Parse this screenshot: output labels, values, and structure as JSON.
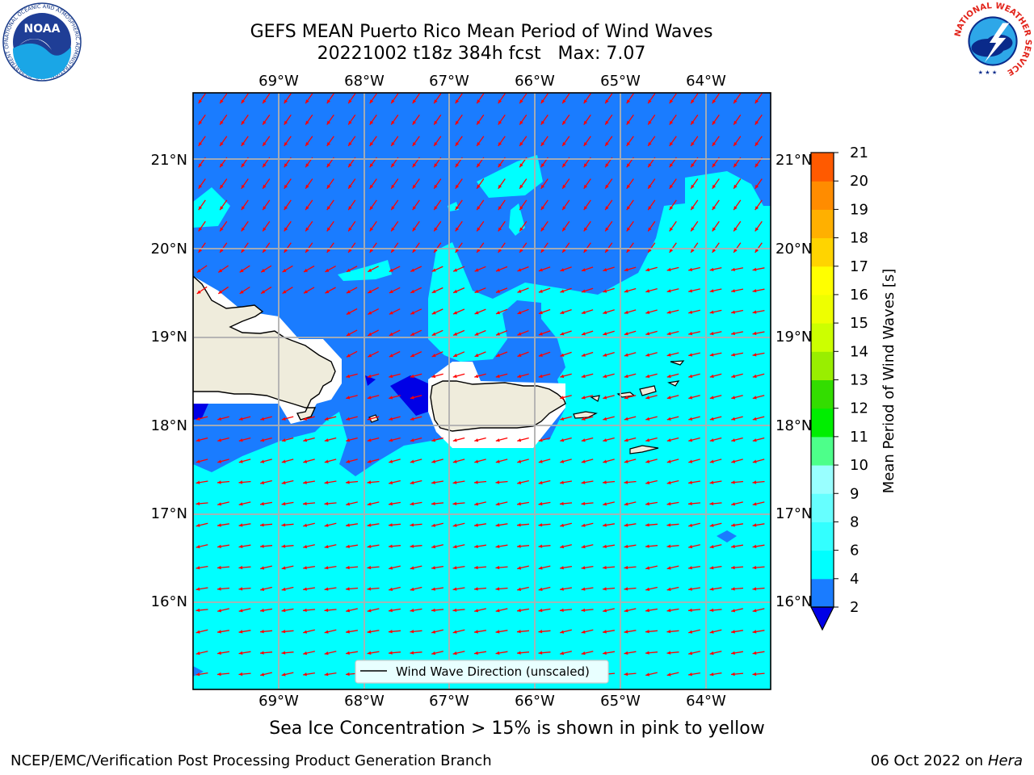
{
  "title": {
    "line1": "GEFS MEAN Puerto Rico Mean Period of Wind Waves",
    "line2": "20221002 t18z 384h fcst   Max: 7.07"
  },
  "map": {
    "lon_labels": [
      "69°W",
      "68°W",
      "67°W",
      "66°W",
      "65°W",
      "64°W"
    ],
    "lat_labels": [
      "21°N",
      "20°N",
      "19°N",
      "18°N",
      "17°N",
      "16°N"
    ],
    "legend_label": "Wind Wave Direction (unscaled)",
    "colors": {
      "ocean_dark": "#1a7cff",
      "ocean_light": "#00ffff",
      "deep": "#0000e6",
      "land": "#efecdc",
      "arrow": "#ff0000",
      "grid": "#b0b0b0"
    }
  },
  "colorbar": {
    "label": "Mean Period of Wind Waves [s]",
    "ticks": [
      "2",
      "4",
      "6",
      "8",
      "9",
      "10",
      "11",
      "12",
      "13",
      "14",
      "15",
      "16",
      "17",
      "18",
      "19",
      "20",
      "21"
    ],
    "colors": [
      "#1a7cff",
      "#00ffff",
      "#33ffff",
      "#66ffff",
      "#99ffff",
      "#4dff8a",
      "#00ee00",
      "#33dd00",
      "#99ee00",
      "#ccff00",
      "#eeff00",
      "#ffff00",
      "#ffd400",
      "#ffb000",
      "#ff8c00",
      "#ff5a00",
      "#ff2a00",
      "#ff0000"
    ],
    "under_color": "#0000e6"
  },
  "note": "Sea Ice Concentration > 15% is shown in pink to yellow",
  "footer": {
    "left": "NCEP/EMC/Verification Post Processing Product Generation Branch",
    "right_date": "06 Oct 2022 on",
    "right_host": "Hera"
  },
  "logos": {
    "noaa": "NOAA",
    "noaa_ring": "NATIONAL OCEANIC AND ATMOSPHERIC ADMINISTRATION · U.S. DEPARTMENT OF COMMERCE",
    "nws_ring": "NATIONAL WEATHER SERVICE"
  }
}
